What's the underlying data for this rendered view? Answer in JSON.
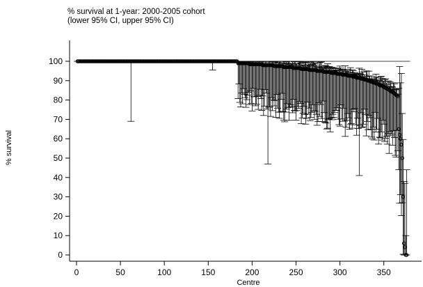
{
  "chart_data": {
    "type": "scatter",
    "title": "% survival at 1-year: 2000-2005 cohort",
    "subtitle": "(lower 95% CI, upper 95% CI)",
    "xlabel": "Centre",
    "ylabel": "% survival",
    "xlim": [
      0,
      380
    ],
    "ylim": [
      0,
      100
    ],
    "xticks": [
      0,
      50,
      100,
      150,
      200,
      250,
      300,
      350
    ],
    "yticks": [
      0,
      10,
      20,
      30,
      40,
      50,
      60,
      70,
      80,
      90,
      100
    ],
    "reference_line": 100,
    "grid": false,
    "legend": "none",
    "n_centres": 376,
    "full_survival_centres": 183,
    "notable_lower_ci": [
      {
        "centre": 62,
        "lower": 69
      },
      {
        "centre": 155,
        "lower": 95.5
      },
      {
        "centre": 218,
        "lower": 47
      },
      {
        "centre": 322,
        "lower": 41
      }
    ],
    "tail_points": [
      {
        "centre": 367,
        "value": 65
      },
      {
        "centre": 368,
        "value": 62
      },
      {
        "centre": 369,
        "value": 60
      },
      {
        "centre": 370,
        "value": 57
      },
      {
        "centre": 371,
        "value": 50
      },
      {
        "centre": 372,
        "value": 30
      },
      {
        "centre": 373,
        "value": 6
      },
      {
        "centre": 374,
        "value": 4
      },
      {
        "centre": 375,
        "value": 0
      },
      {
        "centre": 376,
        "value": 0
      }
    ]
  }
}
